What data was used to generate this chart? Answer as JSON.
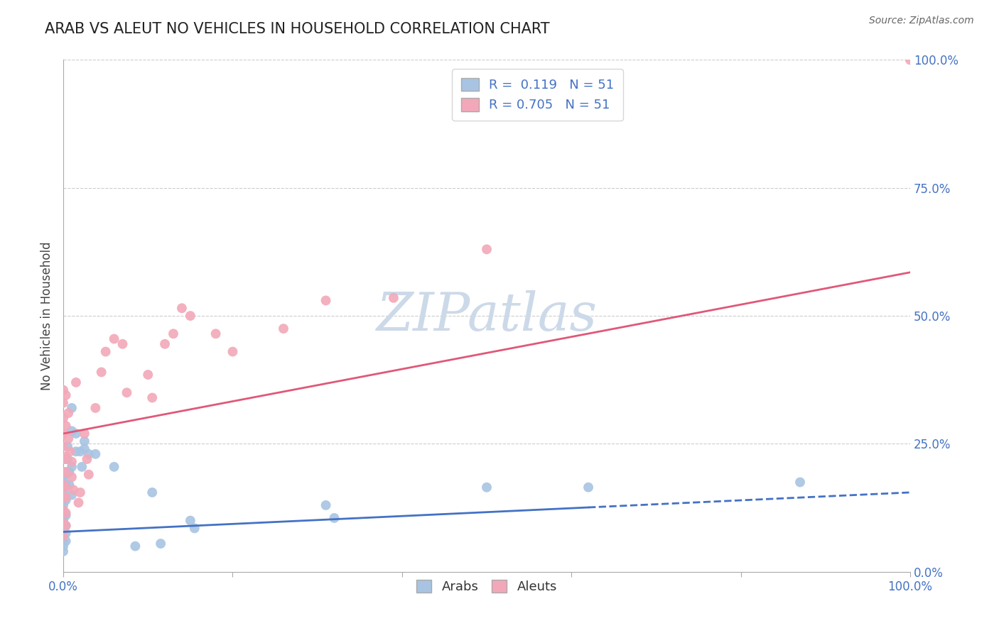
{
  "title": "ARAB VS ALEUT NO VEHICLES IN HOUSEHOLD CORRELATION CHART",
  "source": "Source: ZipAtlas.com",
  "ylabel": "No Vehicles in Household",
  "xlim": [
    0.0,
    1.0
  ],
  "ylim": [
    0.0,
    1.0
  ],
  "ytick_labels": [
    "0.0%",
    "25.0%",
    "50.0%",
    "75.0%",
    "100.0%"
  ],
  "ytick_positions": [
    0.0,
    0.25,
    0.5,
    0.75,
    1.0
  ],
  "arab_R": 0.119,
  "aleut_R": 0.705,
  "N": 51,
  "arab_color": "#a8c4e2",
  "aleut_color": "#f2a8b8",
  "arab_line_color": "#4472C4",
  "aleut_line_color": "#E05878",
  "watermark": "ZIPatlas",
  "watermark_color": "#ccd9e8",
  "arab_line_solid_end": 0.62,
  "arab_line_x0": 0.0,
  "arab_line_y0": 0.078,
  "arab_line_x1": 1.0,
  "arab_line_y1": 0.155,
  "aleut_line_x0": 0.0,
  "aleut_line_y0": 0.27,
  "aleut_line_x1": 1.0,
  "aleut_line_y1": 0.585,
  "arab_scatter": [
    [
      0.0,
      0.195
    ],
    [
      0.0,
      0.185
    ],
    [
      0.0,
      0.175
    ],
    [
      0.0,
      0.165
    ],
    [
      0.0,
      0.155
    ],
    [
      0.0,
      0.14
    ],
    [
      0.0,
      0.13
    ],
    [
      0.0,
      0.12
    ],
    [
      0.0,
      0.11
    ],
    [
      0.0,
      0.1
    ],
    [
      0.0,
      0.09
    ],
    [
      0.0,
      0.08
    ],
    [
      0.0,
      0.07
    ],
    [
      0.0,
      0.06
    ],
    [
      0.0,
      0.05
    ],
    [
      0.0,
      0.04
    ],
    [
      0.003,
      0.22
    ],
    [
      0.003,
      0.19
    ],
    [
      0.003,
      0.17
    ],
    [
      0.003,
      0.14
    ],
    [
      0.003,
      0.11
    ],
    [
      0.003,
      0.09
    ],
    [
      0.003,
      0.075
    ],
    [
      0.003,
      0.06
    ],
    [
      0.005,
      0.245
    ],
    [
      0.005,
      0.22
    ],
    [
      0.007,
      0.195
    ],
    [
      0.007,
      0.17
    ],
    [
      0.01,
      0.32
    ],
    [
      0.01,
      0.275
    ],
    [
      0.01,
      0.205
    ],
    [
      0.01,
      0.15
    ],
    [
      0.015,
      0.27
    ],
    [
      0.015,
      0.235
    ],
    [
      0.02,
      0.235
    ],
    [
      0.022,
      0.205
    ],
    [
      0.025,
      0.255
    ],
    [
      0.025,
      0.24
    ],
    [
      0.03,
      0.23
    ],
    [
      0.038,
      0.23
    ],
    [
      0.06,
      0.205
    ],
    [
      0.085,
      0.05
    ],
    [
      0.105,
      0.155
    ],
    [
      0.115,
      0.055
    ],
    [
      0.15,
      0.1
    ],
    [
      0.155,
      0.085
    ],
    [
      0.31,
      0.13
    ],
    [
      0.32,
      0.105
    ],
    [
      0.5,
      0.165
    ],
    [
      0.62,
      0.165
    ],
    [
      0.87,
      0.175
    ]
  ],
  "aleut_scatter": [
    [
      0.0,
      0.355
    ],
    [
      0.0,
      0.33
    ],
    [
      0.0,
      0.3
    ],
    [
      0.0,
      0.27
    ],
    [
      0.0,
      0.245
    ],
    [
      0.0,
      0.22
    ],
    [
      0.0,
      0.195
    ],
    [
      0.0,
      0.17
    ],
    [
      0.0,
      0.145
    ],
    [
      0.0,
      0.12
    ],
    [
      0.0,
      0.095
    ],
    [
      0.0,
      0.07
    ],
    [
      0.003,
      0.345
    ],
    [
      0.003,
      0.285
    ],
    [
      0.003,
      0.225
    ],
    [
      0.003,
      0.195
    ],
    [
      0.003,
      0.165
    ],
    [
      0.003,
      0.145
    ],
    [
      0.003,
      0.115
    ],
    [
      0.003,
      0.09
    ],
    [
      0.006,
      0.31
    ],
    [
      0.006,
      0.26
    ],
    [
      0.008,
      0.235
    ],
    [
      0.01,
      0.215
    ],
    [
      0.01,
      0.185
    ],
    [
      0.012,
      0.16
    ],
    [
      0.015,
      0.37
    ],
    [
      0.018,
      0.135
    ],
    [
      0.02,
      0.155
    ],
    [
      0.025,
      0.27
    ],
    [
      0.028,
      0.22
    ],
    [
      0.03,
      0.19
    ],
    [
      0.038,
      0.32
    ],
    [
      0.045,
      0.39
    ],
    [
      0.05,
      0.43
    ],
    [
      0.06,
      0.455
    ],
    [
      0.07,
      0.445
    ],
    [
      0.075,
      0.35
    ],
    [
      0.1,
      0.385
    ],
    [
      0.105,
      0.34
    ],
    [
      0.12,
      0.445
    ],
    [
      0.13,
      0.465
    ],
    [
      0.14,
      0.515
    ],
    [
      0.15,
      0.5
    ],
    [
      0.18,
      0.465
    ],
    [
      0.2,
      0.43
    ],
    [
      0.26,
      0.475
    ],
    [
      0.31,
      0.53
    ],
    [
      0.39,
      0.535
    ],
    [
      0.5,
      0.63
    ],
    [
      1.0,
      1.0
    ]
  ]
}
